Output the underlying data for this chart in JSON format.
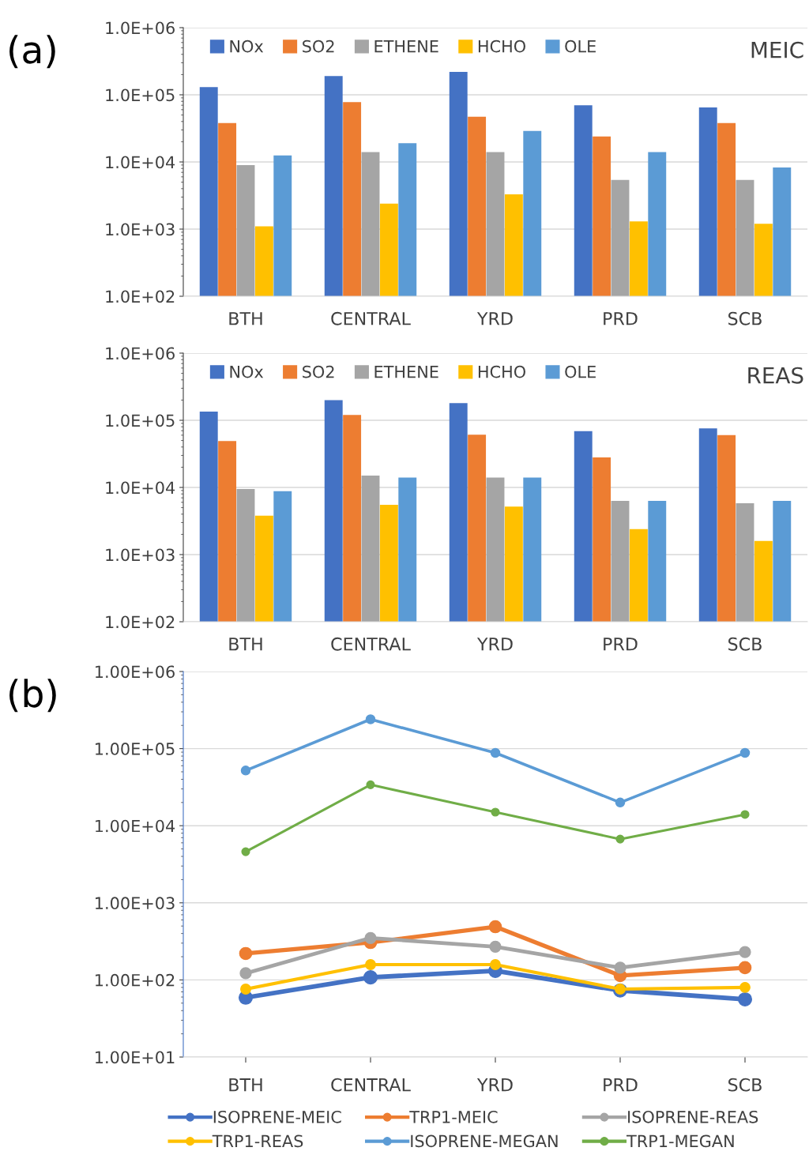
{
  "chart_data": [
    {
      "type": "bar",
      "categories": [
        "BTH",
        "CENTRAL",
        "YRD",
        "PRD",
        "SCB"
      ],
      "log": true,
      "grid": "y",
      "legend": "top left",
      "ylim": [
        100,
        1000000
      ],
      "yticks": [
        {
          "value": 100,
          "label": "1.0E+02"
        },
        {
          "value": 1000,
          "label": "1.0E+03"
        },
        {
          "value": 10000,
          "label": "1.0E+04"
        },
        {
          "value": 100000,
          "label": "1.0E+05"
        },
        {
          "value": 1000000,
          "label": "1.0E+06"
        }
      ],
      "annotations": [
        "(a)",
        "MEIC"
      ],
      "series": [
        {
          "name": "NOx",
          "color": "#4472c4",
          "values": [
            130000,
            190000,
            220000,
            70000,
            65000
          ]
        },
        {
          "name": "SO2",
          "color": "#ed7d31",
          "values": [
            38000,
            78000,
            47000,
            24000,
            38000
          ]
        },
        {
          "name": "ETHENE",
          "color": "#a5a5a5",
          "values": [
            9000,
            14000,
            14000,
            5400,
            5400
          ]
        },
        {
          "name": "HCHO",
          "color": "#ffc000",
          "values": [
            1100,
            2400,
            3300,
            1300,
            1200
          ]
        },
        {
          "name": "OLE",
          "color": "#5b9bd5",
          "values": [
            12500,
            19000,
            29000,
            14000,
            8300
          ]
        }
      ]
    },
    {
      "type": "bar",
      "categories": [
        "BTH",
        "CENTRAL",
        "YRD",
        "PRD",
        "SCB"
      ],
      "log": true,
      "grid": "y",
      "legend": "top left",
      "ylim": [
        100,
        1000000
      ],
      "yticks": [
        {
          "value": 100,
          "label": "1.0E+02"
        },
        {
          "value": 1000,
          "label": "1.0E+03"
        },
        {
          "value": 10000,
          "label": "1.0E+04"
        },
        {
          "value": 100000,
          "label": "1.0E+05"
        },
        {
          "value": 1000000,
          "label": "1.0E+06"
        }
      ],
      "annotations": [
        "REAS"
      ],
      "series": [
        {
          "name": "NOx",
          "color": "#4472c4",
          "values": [
            135000,
            200000,
            180000,
            69000,
            76000
          ]
        },
        {
          "name": "SO2",
          "color": "#ed7d31",
          "values": [
            49000,
            120000,
            61000,
            28000,
            60000
          ]
        },
        {
          "name": "ETHENE",
          "color": "#a5a5a5",
          "values": [
            9500,
            15000,
            14000,
            6300,
            5800
          ]
        },
        {
          "name": "HCHO",
          "color": "#ffc000",
          "values": [
            3800,
            5500,
            5200,
            2400,
            1600
          ]
        },
        {
          "name": "OLE",
          "color": "#5b9bd5",
          "values": [
            8800,
            14000,
            14000,
            6300,
            6300
          ]
        }
      ]
    },
    {
      "type": "line",
      "categories": [
        "BTH",
        "CENTRAL",
        "YRD",
        "PRD",
        "SCB"
      ],
      "log": true,
      "grid": "y",
      "legend": "bottom",
      "marker": "circle",
      "line_style": "solid",
      "ylim": [
        10,
        1000000
      ],
      "yticks": [
        {
          "value": 10,
          "label": "1.00E+01"
        },
        {
          "value": 100,
          "label": "1.00E+02"
        },
        {
          "value": 1000,
          "label": "1.00E+03"
        },
        {
          "value": 10000,
          "label": "1.00E+04"
        },
        {
          "value": 100000,
          "label": "1.00E+05"
        },
        {
          "value": 1000000,
          "label": "1.00E+06"
        }
      ],
      "annotations": [
        "(b)"
      ],
      "series": [
        {
          "name": "ISOPRENE-MEIC",
          "color": "#4472c4",
          "values": [
            59,
            108,
            131,
            73,
            56
          ]
        },
        {
          "name": "TRP1-MEIC",
          "color": "#ed7d31",
          "values": [
            220,
            306,
            490,
            114,
            144
          ]
        },
        {
          "name": "ISOPRENE-REAS",
          "color": "#a5a5a5",
          "values": [
            122,
            350,
            270,
            144,
            230
          ]
        },
        {
          "name": "TRP1-REAS",
          "color": "#ffc000",
          "values": [
            76,
            158,
            158,
            76,
            80
          ]
        },
        {
          "name": "ISOPRENE-MEGAN",
          "color": "#5b9bd5",
          "values": [
            52000,
            240000,
            88000,
            20000,
            88000
          ]
        },
        {
          "name": "TRP1-MEGAN",
          "color": "#70ad47",
          "values": [
            4600,
            34000,
            15000,
            6700,
            14000
          ]
        }
      ]
    }
  ]
}
